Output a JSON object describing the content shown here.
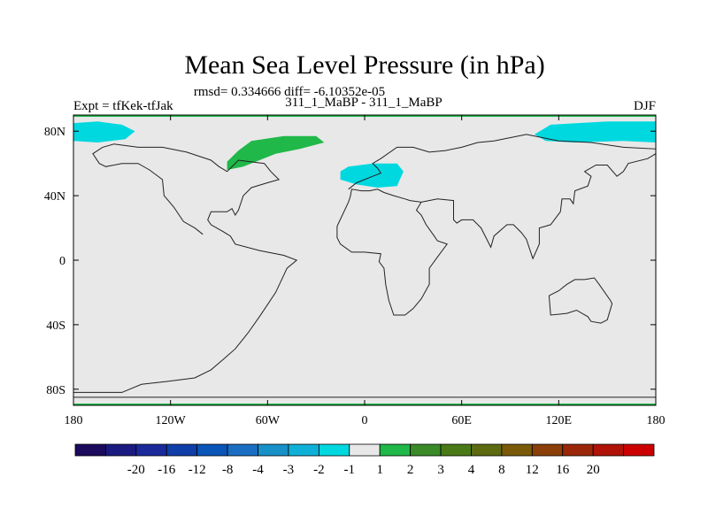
{
  "chart_data": {
    "type": "heatmap",
    "title": "Mean Sea Level Pressure (in hPa)",
    "stats_line": "rmsd= 0.334666 diff= -6.10352e-05",
    "left_label": "Expt = tfKek-tfJak",
    "center_label": "311_1_MaBP - 311_1_MaBP",
    "right_label": "DJF",
    "x_ticks": [
      {
        "value": -180,
        "label": "180"
      },
      {
        "value": -120,
        "label": "120W"
      },
      {
        "value": -60,
        "label": "60W"
      },
      {
        "value": 0,
        "label": "0"
      },
      {
        "value": 60,
        "label": "60E"
      },
      {
        "value": 120,
        "label": "120E"
      },
      {
        "value": 180,
        "label": "180"
      }
    ],
    "y_ticks": [
      {
        "value": 80,
        "label": "80N"
      },
      {
        "value": 40,
        "label": "40N"
      },
      {
        "value": 0,
        "label": "0"
      },
      {
        "value": -40,
        "label": "40S"
      },
      {
        "value": -80,
        "label": "80S"
      }
    ],
    "xlim": [
      -180,
      180
    ],
    "ylim": [
      -90,
      90
    ],
    "colorbar": {
      "colors": [
        "#1c0a5c",
        "#1a1a80",
        "#1a2a9a",
        "#0f3ea8",
        "#0a55b8",
        "#1a6ec2",
        "#1890c8",
        "#0fb0d8",
        "#00d8e0",
        "#e8e8e8",
        "#20b848",
        "#3a8a28",
        "#4a7a18",
        "#5e6a10",
        "#7a5a08",
        "#8a4008",
        "#9a2808",
        "#b01208",
        "#cc0000"
      ],
      "labels": [
        "-20",
        "-16",
        "-12",
        "-8",
        "-4",
        "-3",
        "-2",
        "-1",
        "1",
        "2",
        "3",
        "4",
        "8",
        "12",
        "16",
        "20"
      ]
    },
    "anomalies": [
      {
        "sign": "negative",
        "level": "-2 to -1",
        "color": "#00d8e0",
        "region": "North Pacific / Arctic, west of 150W",
        "points": [
          [
            -180,
            85
          ],
          [
            -165,
            86
          ],
          [
            -150,
            84
          ],
          [
            -142,
            80
          ],
          [
            -148,
            75
          ],
          [
            -165,
            73
          ],
          [
            -180,
            74
          ]
        ]
      },
      {
        "sign": "negative",
        "level": "-2 to -1",
        "color": "#00d8e0",
        "region": "North Pacific / Arctic, east of 100E",
        "points": [
          [
            180,
            86
          ],
          [
            150,
            86
          ],
          [
            115,
            84
          ],
          [
            105,
            78
          ],
          [
            112,
            74
          ],
          [
            130,
            73
          ],
          [
            160,
            74
          ],
          [
            180,
            73
          ]
        ]
      },
      {
        "sign": "negative",
        "level": "-2 to -1",
        "color": "#00d8e0",
        "region": "Europe / western Russia",
        "points": [
          [
            -15,
            55
          ],
          [
            -10,
            58
          ],
          [
            5,
            60
          ],
          [
            20,
            60
          ],
          [
            24,
            55
          ],
          [
            20,
            46
          ],
          [
            8,
            45
          ],
          [
            -5,
            47
          ],
          [
            -15,
            50
          ]
        ]
      },
      {
        "sign": "positive",
        "level": "1 to 2",
        "color": "#20b848",
        "region": "Greenland / North Atlantic",
        "points": [
          [
            -85,
            61
          ],
          [
            -78,
            68
          ],
          [
            -70,
            74
          ],
          [
            -50,
            77
          ],
          [
            -30,
            77
          ],
          [
            -25,
            73
          ],
          [
            -40,
            69
          ],
          [
            -55,
            66
          ],
          [
            -75,
            58
          ],
          [
            -85,
            56
          ]
        ]
      }
    ],
    "coastlines": [
      {
        "name": "americas",
        "points": [
          [
            -180,
            -82
          ],
          [
            -150,
            -82
          ],
          [
            -138,
            -77
          ],
          [
            -121,
            -75
          ],
          [
            -105,
            -73
          ],
          [
            -95,
            -68
          ],
          [
            -88,
            -62
          ],
          [
            -80,
            -55
          ],
          [
            -72,
            -45
          ],
          [
            -65,
            -35
          ],
          [
            -55,
            -20
          ],
          [
            -48,
            -5
          ],
          [
            -42,
            0
          ],
          [
            -50,
            3
          ],
          [
            -65,
            6
          ],
          [
            -80,
            10
          ],
          [
            -83,
            15
          ],
          [
            -88,
            18
          ],
          [
            -95,
            22
          ],
          [
            -97,
            25
          ],
          [
            -95,
            30
          ],
          [
            -85,
            30
          ],
          [
            -82,
            32
          ],
          [
            -80,
            28
          ],
          [
            -78,
            31
          ],
          [
            -75,
            40
          ],
          [
            -70,
            45
          ],
          [
            -60,
            48
          ],
          [
            -53,
            50
          ],
          [
            -58,
            55
          ],
          [
            -62,
            60
          ],
          [
            -78,
            62
          ],
          [
            -80,
            60
          ],
          [
            -85,
            55
          ],
          [
            -90,
            58
          ],
          [
            -95,
            62
          ],
          [
            -110,
            67
          ],
          [
            -125,
            70
          ],
          [
            -140,
            70
          ],
          [
            -155,
            72
          ],
          [
            -162,
            70
          ],
          [
            -168,
            66
          ],
          [
            -164,
            60
          ],
          [
            -160,
            58
          ],
          [
            -150,
            60
          ],
          [
            -140,
            60
          ],
          [
            -133,
            56
          ],
          [
            -125,
            50
          ],
          [
            -124,
            40
          ],
          [
            -118,
            33
          ],
          [
            -112,
            24
          ],
          [
            -105,
            20
          ],
          [
            -100,
            16
          ]
        ]
      },
      {
        "name": "afro-eurasia",
        "points": [
          [
            -10,
            36
          ],
          [
            -17,
            21
          ],
          [
            -17,
            14
          ],
          [
            -15,
            10
          ],
          [
            -8,
            5
          ],
          [
            0,
            5
          ],
          [
            10,
            4
          ],
          [
            9,
            -1
          ],
          [
            12,
            -5
          ],
          [
            13,
            -15
          ],
          [
            15,
            -25
          ],
          [
            18,
            -34
          ],
          [
            25,
            -34
          ],
          [
            30,
            -30
          ],
          [
            35,
            -24
          ],
          [
            40,
            -15
          ],
          [
            40,
            -5
          ],
          [
            45,
            2
          ],
          [
            51,
            10
          ],
          [
            45,
            12
          ],
          [
            43,
            15
          ],
          [
            38,
            22
          ],
          [
            35,
            28
          ],
          [
            32,
            31
          ],
          [
            35,
            36
          ],
          [
            28,
            37
          ],
          [
            25,
            38
          ],
          [
            18,
            40
          ],
          [
            12,
            42
          ],
          [
            8,
            44
          ],
          [
            3,
            43
          ],
          [
            -2,
            43
          ],
          [
            -8,
            44
          ],
          [
            -9,
            39
          ],
          [
            -10,
            36
          ]
        ]
      },
      {
        "name": "asia",
        "points": [
          [
            35,
            36
          ],
          [
            45,
            38
          ],
          [
            55,
            37
          ],
          [
            55,
            25
          ],
          [
            57,
            23
          ],
          [
            60,
            25
          ],
          [
            67,
            25
          ],
          [
            72,
            20
          ],
          [
            78,
            8
          ],
          [
            80,
            15
          ],
          [
            88,
            22
          ],
          [
            92,
            22
          ],
          [
            97,
            17
          ],
          [
            100,
            13
          ],
          [
            104,
            1
          ],
          [
            108,
            10
          ],
          [
            108,
            20
          ],
          [
            115,
            22
          ],
          [
            121,
            30
          ],
          [
            122,
            38
          ],
          [
            127,
            38
          ],
          [
            129,
            35
          ],
          [
            130,
            43
          ],
          [
            138,
            46
          ],
          [
            140,
            52
          ],
          [
            136,
            55
          ],
          [
            143,
            59
          ],
          [
            150,
            59
          ],
          [
            156,
            52
          ],
          [
            160,
            55
          ],
          [
            163,
            60
          ],
          [
            175,
            63
          ],
          [
            180,
            66
          ],
          [
            180,
            69
          ],
          [
            160,
            70
          ],
          [
            140,
            73
          ],
          [
            120,
            74
          ],
          [
            100,
            78
          ],
          [
            80,
            74
          ],
          [
            70,
            73
          ],
          [
            60,
            70
          ],
          [
            50,
            68
          ],
          [
            40,
            67
          ],
          [
            30,
            70
          ],
          [
            20,
            70
          ],
          [
            10,
            63
          ],
          [
            5,
            60
          ],
          [
            8,
            57
          ],
          [
            10,
            54
          ],
          [
            5,
            52
          ],
          [
            0,
            50
          ],
          [
            -5,
            48
          ],
          [
            -10,
            44
          ]
        ]
      },
      {
        "name": "australia",
        "points": [
          [
            114,
            -22
          ],
          [
            115,
            -34
          ],
          [
            125,
            -33
          ],
          [
            131,
            -31
          ],
          [
            138,
            -35
          ],
          [
            140,
            -38
          ],
          [
            146,
            -39
          ],
          [
            150,
            -37
          ],
          [
            153,
            -27
          ],
          [
            152,
            -25
          ],
          [
            145,
            -15
          ],
          [
            142,
            -11
          ],
          [
            136,
            -12
          ],
          [
            130,
            -12
          ],
          [
            125,
            -15
          ],
          [
            120,
            -19
          ],
          [
            114,
            -22
          ]
        ]
      },
      {
        "name": "antarctica",
        "points": [
          [
            -180,
            -85
          ],
          [
            -120,
            -85
          ],
          [
            -60,
            -85
          ],
          [
            0,
            -85
          ],
          [
            60,
            -85
          ],
          [
            120,
            -85
          ],
          [
            180,
            -85
          ]
        ]
      }
    ]
  }
}
